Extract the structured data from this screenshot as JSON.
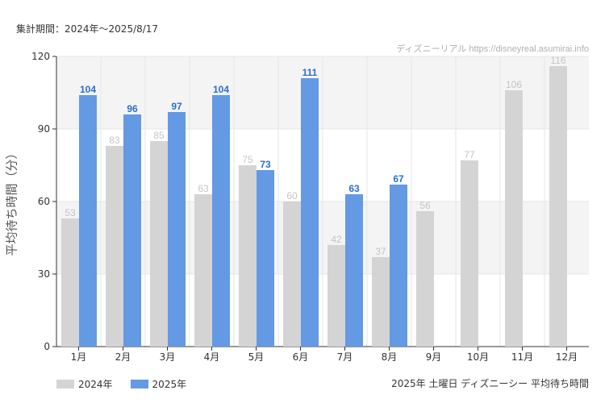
{
  "period_label": "集計期間：2024年〜2025/8/17",
  "credit": "ディズニーリアル https://disneyreal.asumirai.info",
  "footer_title": "2025年 土曜日 ディズニーシー 平均待ち時間",
  "colors": {
    "s2024": "#d4d4d4",
    "s2025": "#6499e3",
    "label2025": "#2a6fd1",
    "label2024": "#c4c4c4",
    "band": "#f4f4f4",
    "grid": "#e6e6e6"
  },
  "chart_data": {
    "type": "bar",
    "ylabel": "平均待ち時間（分）",
    "ylim": [
      0,
      120
    ],
    "yticks": [
      0,
      30,
      60,
      90,
      120
    ],
    "categories": [
      "1月",
      "2月",
      "3月",
      "4月",
      "5月",
      "6月",
      "7月",
      "8月",
      "9月",
      "10月",
      "11月",
      "12月"
    ],
    "series": [
      {
        "name": "2024年",
        "values": [
          53,
          83,
          85,
          63,
          75,
          60,
          42,
          37,
          56,
          77,
          106,
          116
        ]
      },
      {
        "name": "2025年",
        "values": [
          104,
          96,
          97,
          104,
          73,
          111,
          63,
          67,
          null,
          null,
          null,
          null
        ]
      }
    ],
    "legend": "bottom-left",
    "grid": true
  }
}
